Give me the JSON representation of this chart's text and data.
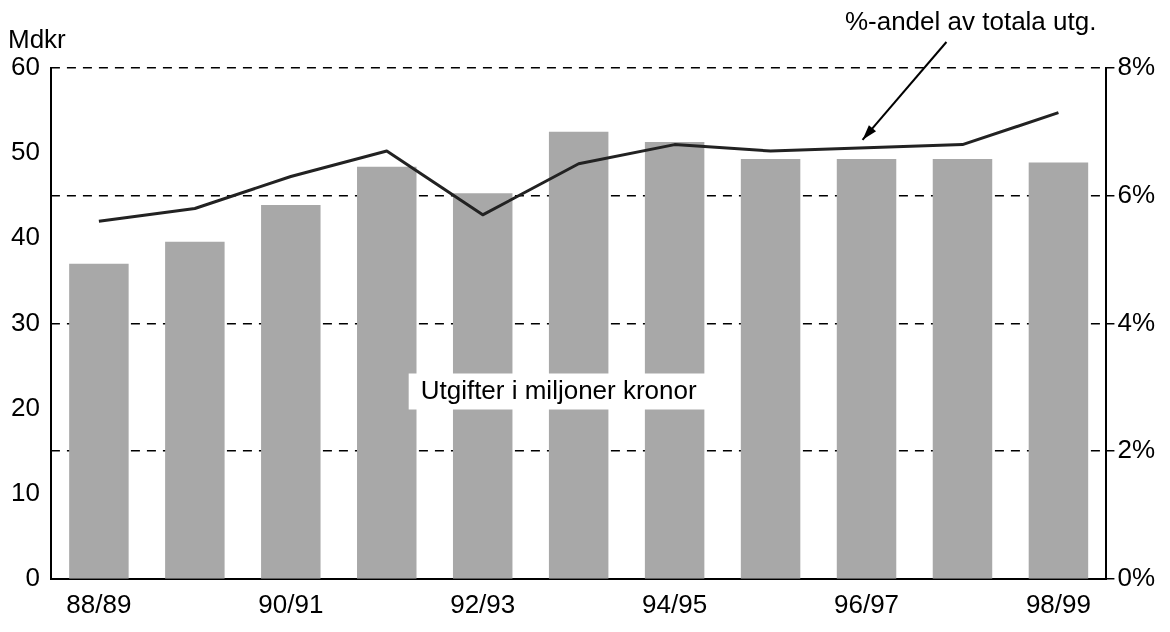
{
  "chart_data": {
    "type": "bar",
    "ylabel": "Mdkr",
    "categories": [
      "88/89",
      null,
      "90/91",
      null,
      "92/93",
      null,
      "94/95",
      null,
      "96/97",
      null,
      "98/99"
    ],
    "series": [
      {
        "name": "Utgifter i miljoner kronor",
        "color": "#a8a8a8",
        "values": [
          37,
          39.6,
          43.9,
          48.4,
          45.3,
          52.5,
          51.3,
          49.3,
          49.3,
          49.3,
          48.9
        ]
      },
      {
        "name": "%-andel av totala utg.",
        "type": "line",
        "axis": "y2",
        "color": "#222222",
        "values": [
          5.6,
          5.8,
          6.3,
          6.7,
          5.7,
          6.5,
          6.8,
          6.7,
          6.75,
          6.8,
          7.3
        ]
      }
    ],
    "ylim": [
      0,
      60
    ],
    "yticks": [
      0,
      10,
      20,
      30,
      40,
      50,
      60
    ],
    "y2lim": [
      0,
      8
    ],
    "y2ticks": [
      {
        "value": 0,
        "label": "0%"
      },
      {
        "value": 2,
        "label": "2%"
      },
      {
        "value": 4,
        "label": "4%"
      },
      {
        "value": 6,
        "label": "6%"
      },
      {
        "value": 8,
        "label": "8%"
      }
    ],
    "grid": "y2",
    "legend": false,
    "marker": "none",
    "line_style": "solid"
  }
}
